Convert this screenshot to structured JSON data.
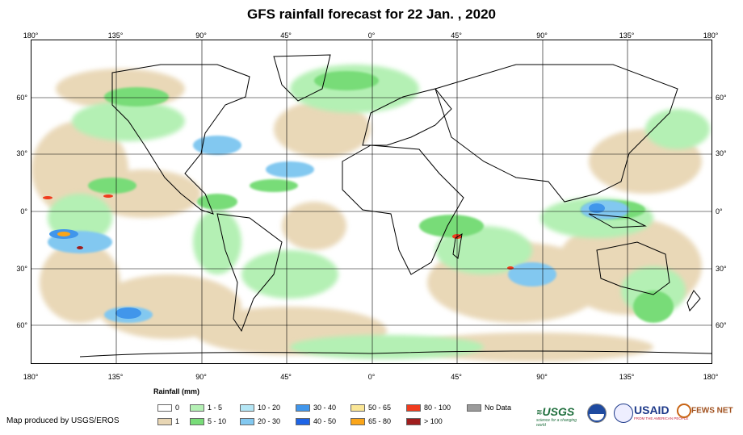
{
  "header": {
    "title": "GFS rainfall forecast for 22 Jan. , 2020"
  },
  "axes": {
    "longitude_labels": [
      "180°",
      "135°",
      "90°",
      "45°",
      "0°",
      "45°",
      "90°",
      "135°",
      "180°"
    ],
    "latitude_labels": [
      "60°",
      "30°",
      "0°",
      "30°",
      "60°"
    ]
  },
  "legend": {
    "title": "Rainfall (mm)",
    "items": [
      {
        "label": "0",
        "color": "#ffffff"
      },
      {
        "label": "1",
        "color": "#e8d6b4"
      },
      {
        "label": "1 - 5",
        "color": "#b4f0b4"
      },
      {
        "label": "5 - 10",
        "color": "#78dc78"
      },
      {
        "label": "10 - 20",
        "color": "#b4e6f5"
      },
      {
        "label": "20 - 30",
        "color": "#82c8f0"
      },
      {
        "label": "30 - 40",
        "color": "#4196eb"
      },
      {
        "label": "40 - 50",
        "color": "#1e64e6"
      },
      {
        "label": "50 - 65",
        "color": "#fae696"
      },
      {
        "label": "65 - 80",
        "color": "#faa519"
      },
      {
        "label": "80 - 100",
        "color": "#f03c1e"
      },
      {
        "label": "> 100",
        "color": "#a01e1e"
      },
      {
        "label": "No Data",
        "color": "#9b9b9b"
      }
    ]
  },
  "footer": {
    "credit": "Map produced by USGS/EROS",
    "logos": {
      "usgs": "USGS",
      "usgs_tagline": "science for a changing world",
      "usaid": "USAID",
      "usaid_tagline": "FROM THE AMERICAN PEOPLE",
      "fewsnet": "FEWS NET"
    }
  }
}
